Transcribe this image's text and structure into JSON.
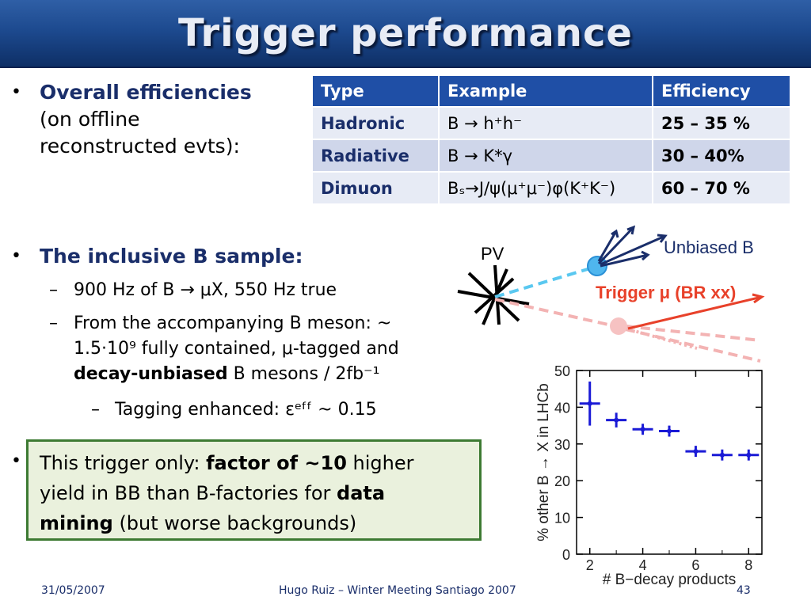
{
  "header": {
    "title": "Trigger performance"
  },
  "bullet1": {
    "bold": "Overall efficiencies",
    "rest1": "(on offline",
    "rest2": "reconstructed evts):"
  },
  "table": {
    "headers": [
      "Type",
      "Example",
      "Efficiency"
    ],
    "rows": [
      {
        "type": "Hadronic",
        "example": "B → h⁺h⁻",
        "eff": "25 – 35 %"
      },
      {
        "type": "Radiative",
        "example": "B → K*γ",
        "eff": "30 – 40%"
      },
      {
        "type": "Dimuon",
        "example": "Bₛ→J/ψ(μ⁺μ⁻)φ(K⁺K⁻)",
        "eff": "60 – 70 %"
      }
    ]
  },
  "bullet2": {
    "title": "The inclusive B sample:",
    "sub1": "900 Hz of B → μX, 550 Hz true",
    "sub2_line1": "From the accompanying B meson: ~",
    "sub2_line2": "1.5·10⁹ fully contained, μ-tagged and",
    "sub2_line3_bold": "decay-unbiased",
    "sub2_line3_rest": " B mesons / 2fb⁻¹",
    "subsub": "Tagging enhanced: εᵉᶠᶠ ~ 0.15"
  },
  "bullet3": {
    "t1": "This trigger only: ",
    "b1": "factor of ~10",
    "t2": " higher",
    "t3": "yield in BB than B-factories for ",
    "b2": "data",
    "b3": "mining",
    "t4": " (but worse backgrounds)"
  },
  "diagram": {
    "pv_label": "PV",
    "unbiased_label": "Unbiased B",
    "trigger_label": "Trigger μ (BR xx)"
  },
  "chart_data": {
    "type": "scatter",
    "xlabel": "# B−decay products",
    "ylabel": "% other B → X in LHCb",
    "xlim": [
      1.5,
      8.5
    ],
    "ylim": [
      0,
      50
    ],
    "xticks": [
      "2",
      "4",
      "6",
      "8"
    ],
    "yticks": [
      "0",
      "10",
      "20",
      "30",
      "40",
      "50"
    ],
    "color": "#1a1ad6",
    "points": [
      {
        "x": 2,
        "y": 41,
        "yerr": 6
      },
      {
        "x": 3,
        "y": 36.5,
        "yerr": 2
      },
      {
        "x": 4,
        "y": 34,
        "yerr": 1.5
      },
      {
        "x": 5,
        "y": 33.5,
        "yerr": 1.5
      },
      {
        "x": 6,
        "y": 28,
        "yerr": 1.5
      },
      {
        "x": 7,
        "y": 27,
        "yerr": 1.5
      },
      {
        "x": 8,
        "y": 27,
        "yerr": 1.5
      }
    ]
  },
  "footer": {
    "date": "31/05/2007",
    "center": "Hugo Ruiz – Winter Meeting Santiago 2007",
    "page": "43"
  }
}
